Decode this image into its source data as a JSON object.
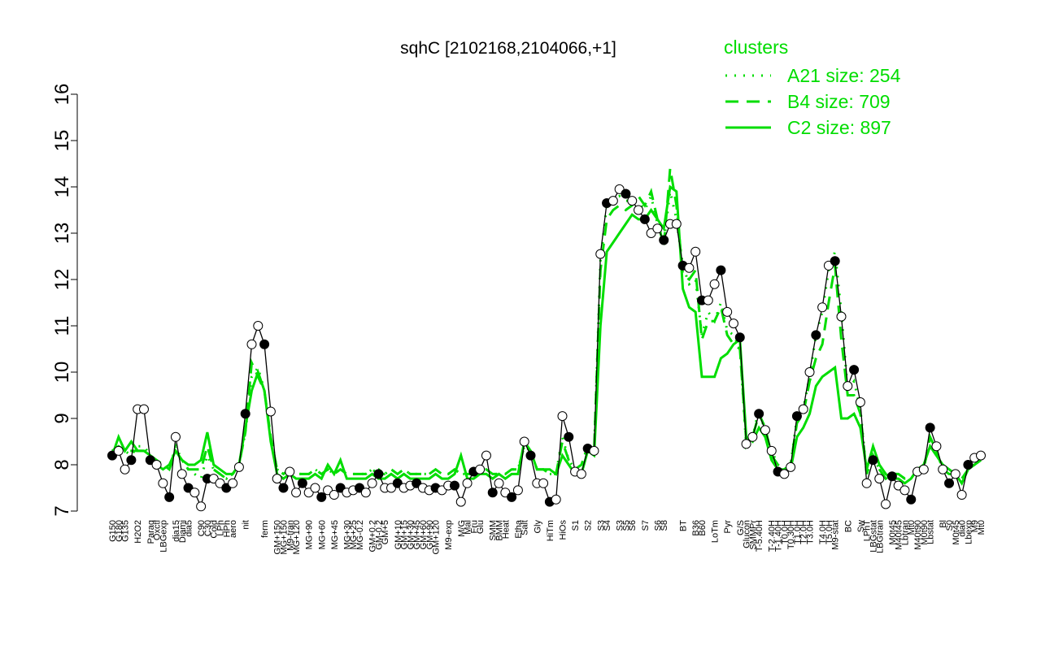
{
  "chart_data": {
    "type": "line",
    "title": "sqhC [2102168,2104066,+1]",
    "ylim": [
      7,
      16
    ],
    "yticks": [
      7,
      8,
      9,
      10,
      11,
      12,
      13,
      14,
      15,
      16
    ],
    "legend_title": "clusters",
    "legend_position": "top-right",
    "point_color": "#000000",
    "categories": [
      "G150",
      "G180",
      "G135",
      null,
      "H2O2",
      null,
      "Paraq",
      "Oxctl",
      "LBGexp",
      null,
      "dia15",
      "Diami",
      "dia5",
      null,
      "C90",
      "C30",
      "Cold",
      "LPh",
      "HPh",
      "aero",
      null,
      "nit",
      null,
      null,
      "ferm",
      null,
      "GM+150",
      "MG+150",
      "M9-tran",
      "MG+120",
      null,
      "MG+90",
      null,
      "MG+60",
      null,
      "MG+45",
      null,
      "MG+30",
      "MG+25",
      "MG-0.2",
      null,
      "GM+0.2",
      "GM-0.2",
      "GM+5",
      null,
      "GM+10",
      "GM+15",
      "GM+30",
      "GM+45",
      "GM+60",
      "GM+90",
      "GM+120",
      null,
      "M9-exp",
      null,
      "M/G",
      "Mal",
      "Fru",
      "Glu",
      null,
      "SMM",
      "BMM",
      "Heat",
      null,
      "Etha",
      "Salt",
      null,
      "Gly",
      null,
      "HiTm",
      null,
      "HiOs",
      null,
      "S1",
      null,
      "S2",
      null,
      "S3",
      "S4",
      null,
      "S3",
      "S5",
      "S6",
      null,
      "S7",
      null,
      "S6",
      "S8",
      null,
      null,
      "BT",
      null,
      "B36",
      "B60",
      null,
      "LoTm",
      null,
      "Pyr",
      null,
      "G/S",
      "Glucon",
      "SMMPr",
      "T-5.40H",
      null,
      "T-2.40H",
      "T-1.40H",
      "T0.0H",
      "T0.30H",
      "T1.0H",
      "T2.0H",
      "T3.0H",
      null,
      "T4.0H",
      "T5.0H",
      "M9-stat",
      null,
      "BC",
      null,
      "Sw",
      "LPhT",
      "LBGstat",
      "LBGtran",
      null,
      "M0t45",
      "M40t45",
      "Lbtran",
      "Mt0",
      "M40t90",
      "M0t90",
      "Lbstat",
      null,
      "Bl",
      "S0",
      "M0t45",
      "dia0",
      "Lbexp",
      "M9",
      "Mt0"
    ],
    "values": [
      8.2,
      8.3,
      7.9,
      8.1,
      9.2,
      9.2,
      8.1,
      8.0,
      7.6,
      7.3,
      8.6,
      7.8,
      7.5,
      7.4,
      7.1,
      7.7,
      7.7,
      7.6,
      7.5,
      7.6,
      7.95,
      9.1,
      10.6,
      11.0,
      10.6,
      9.15,
      7.7,
      7.5,
      7.85,
      7.4,
      7.6,
      7.4,
      7.5,
      7.3,
      7.45,
      7.35,
      7.5,
      7.4,
      7.45,
      7.5,
      7.4,
      7.6,
      7.8,
      7.5,
      7.5,
      7.6,
      7.5,
      7.55,
      7.6,
      7.5,
      7.45,
      7.5,
      7.45,
      7.55,
      7.55,
      7.2,
      7.6,
      7.85,
      7.9,
      8.2,
      7.4,
      7.6,
      7.4,
      7.3,
      7.45,
      8.5,
      8.2,
      7.6,
      7.6,
      7.2,
      7.25,
      9.05,
      8.6,
      7.85,
      7.8,
      8.35,
      8.3,
      12.55,
      13.65,
      13.7,
      13.95,
      13.85,
      13.7,
      13.5,
      13.3,
      13.0,
      13.1,
      12.85,
      13.2,
      13.2,
      12.3,
      12.25,
      12.6,
      11.55,
      11.55,
      11.9,
      12.2,
      11.3,
      11.05,
      10.75,
      8.45,
      8.6,
      9.1,
      8.75,
      8.3,
      7.85,
      7.8,
      7.95,
      9.05,
      9.2,
      10.0,
      10.8,
      11.4,
      12.3,
      12.4,
      11.2,
      9.7,
      10.05,
      9.35,
      7.6,
      8.1,
      7.7,
      7.15,
      7.75,
      7.55,
      7.45,
      7.25,
      7.85,
      7.9,
      8.8,
      8.4,
      7.9,
      7.6,
      7.8,
      7.35,
      8.0,
      8.15,
      8.2
    ],
    "series": [
      {
        "name": "A21 size: 254",
        "color": "#00dd00",
        "dash": "dotted",
        "values": [
          8.3,
          8.4,
          8.3,
          8.2,
          8.4,
          8.4,
          8.2,
          8.1,
          8.0,
          7.9,
          8.4,
          8.1,
          7.9,
          7.8,
          7.7,
          8.2,
          7.9,
          7.8,
          7.7,
          7.8,
          8.0,
          8.7,
          9.9,
          10.1,
          9.6,
          8.6,
          7.9,
          7.8,
          7.9,
          7.8,
          7.8,
          7.8,
          7.9,
          7.8,
          7.9,
          7.8,
          7.9,
          7.8,
          7.8,
          7.8,
          7.8,
          7.9,
          7.9,
          7.8,
          7.9,
          7.8,
          7.9,
          7.8,
          7.8,
          7.8,
          7.8,
          7.9,
          7.8,
          7.8,
          7.9,
          7.8,
          7.8,
          7.8,
          7.9,
          7.9,
          7.8,
          7.8,
          7.8,
          7.9,
          7.9,
          8.4,
          8.3,
          7.9,
          7.9,
          7.8,
          7.8,
          8.6,
          8.1,
          7.9,
          8.0,
          8.4,
          8.3,
          12.4,
          13.6,
          13.7,
          13.8,
          13.7,
          13.7,
          13.7,
          13.5,
          13.8,
          13.2,
          12.8,
          13.9,
          13.3,
          12.3,
          11.9,
          12.0,
          10.8,
          11.3,
          11.1,
          11.5,
          10.9,
          10.8,
          10.5,
          8.4,
          8.6,
          9.2,
          8.7,
          8.3,
          8.0,
          7.9,
          8.0,
          9.0,
          9.2,
          9.9,
          10.8,
          11.3,
          12.2,
          12.6,
          11.3,
          9.6,
          9.8,
          9.2,
          7.8,
          8.2,
          7.9,
          7.7,
          7.8,
          7.8,
          7.7,
          7.7,
          7.9,
          7.9,
          8.6,
          8.3,
          7.9,
          7.8,
          7.8,
          7.7,
          7.9,
          8.0,
          8.1
        ]
      },
      {
        "name": "B4 size: 709",
        "color": "#00dd00",
        "dash": "dashed",
        "values": [
          8.3,
          8.4,
          8.3,
          8.3,
          8.3,
          8.3,
          8.2,
          8.1,
          8.0,
          7.9,
          8.3,
          8.1,
          7.9,
          7.9,
          7.9,
          8.4,
          7.9,
          7.8,
          7.7,
          7.8,
          8.0,
          8.7,
          10.2,
          9.9,
          9.6,
          8.6,
          7.9,
          7.8,
          7.9,
          7.8,
          7.8,
          7.8,
          7.9,
          7.8,
          7.9,
          7.8,
          7.9,
          7.8,
          7.8,
          7.8,
          7.8,
          7.9,
          7.8,
          7.8,
          7.9,
          7.8,
          7.9,
          7.8,
          7.8,
          7.8,
          7.8,
          7.9,
          7.8,
          7.8,
          7.9,
          7.8,
          7.8,
          7.8,
          7.9,
          7.9,
          7.8,
          7.8,
          7.8,
          7.9,
          7.9,
          8.4,
          8.3,
          7.9,
          7.9,
          7.8,
          7.8,
          8.5,
          8.1,
          7.9,
          8.0,
          8.4,
          8.3,
          12.2,
          13.3,
          13.5,
          13.6,
          13.5,
          13.6,
          13.8,
          13.6,
          13.9,
          13.3,
          12.7,
          14.4,
          13.6,
          12.1,
          12.0,
          12.2,
          10.7,
          11.1,
          11.1,
          11.4,
          10.8,
          10.6,
          10.5,
          8.5,
          8.6,
          9.1,
          8.8,
          8.2,
          8.0,
          7.9,
          8.0,
          8.9,
          9.1,
          9.8,
          10.3,
          10.6,
          11.5,
          12.3,
          10.7,
          9.5,
          9.5,
          9.1,
          7.8,
          8.2,
          7.9,
          7.7,
          7.8,
          7.8,
          7.7,
          7.7,
          7.9,
          7.9,
          8.6,
          8.3,
          7.9,
          7.8,
          7.8,
          7.7,
          7.9,
          8.0,
          8.1
        ]
      },
      {
        "name": "C2 size: 897",
        "color": "#00dd00",
        "dash": "solid",
        "values": [
          8.2,
          8.6,
          8.3,
          8.5,
          8.3,
          8.3,
          8.2,
          8.0,
          7.9,
          8.0,
          8.3,
          8.1,
          8.0,
          8.0,
          8.1,
          8.7,
          8.0,
          7.9,
          7.8,
          7.8,
          8.0,
          8.8,
          9.6,
          10.0,
          9.6,
          8.5,
          7.8,
          7.7,
          7.8,
          7.7,
          7.7,
          7.7,
          7.8,
          7.7,
          8.0,
          7.8,
          8.1,
          7.7,
          7.7,
          7.7,
          7.7,
          7.8,
          7.7,
          7.7,
          7.8,
          7.7,
          7.8,
          7.7,
          7.7,
          7.7,
          7.7,
          7.8,
          7.7,
          7.7,
          7.8,
          8.2,
          7.7,
          7.7,
          7.8,
          7.8,
          7.7,
          7.8,
          7.7,
          7.8,
          7.8,
          8.5,
          8.3,
          7.9,
          7.9,
          7.9,
          7.8,
          8.2,
          8.0,
          7.8,
          7.8,
          8.3,
          8.2,
          11.0,
          12.6,
          12.8,
          13.0,
          13.2,
          13.4,
          13.3,
          13.3,
          13.5,
          13.3,
          13.1,
          14.0,
          13.9,
          11.8,
          11.4,
          11.3,
          9.9,
          9.9,
          9.9,
          10.3,
          10.4,
          10.6,
          10.7,
          8.6,
          8.5,
          8.8,
          8.6,
          8.1,
          7.9,
          7.9,
          7.9,
          8.6,
          8.8,
          9.1,
          9.7,
          9.9,
          10.0,
          10.1,
          9.0,
          9.0,
          9.1,
          8.8,
          7.9,
          8.4,
          8.0,
          7.8,
          7.7,
          7.7,
          7.6,
          7.7,
          7.9,
          8.0,
          8.4,
          8.2,
          8.0,
          7.9,
          7.8,
          7.6,
          7.9,
          8.0,
          8.1
        ]
      }
    ]
  }
}
